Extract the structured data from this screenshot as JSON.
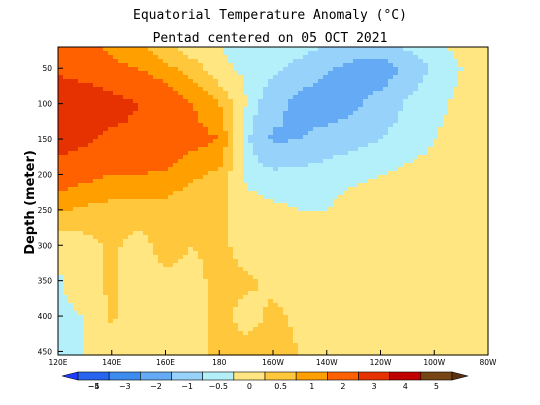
{
  "chart_data": {
    "type": "heatmap",
    "title": "Equatorial Temperature Anomaly (°C)",
    "subtitle": "Pentad centered on 05 OCT 2021",
    "ylabel": "Depth (meter)",
    "xlabel": "",
    "x_ticks": [
      "120E",
      "140E",
      "160E",
      "180",
      "160W",
      "140W",
      "120W",
      "100W",
      "80W"
    ],
    "x_tick_lon": [
      120,
      140,
      160,
      180,
      200,
      220,
      240,
      260,
      280
    ],
    "xlim": [
      120,
      280
    ],
    "y_ticks": [
      50,
      100,
      150,
      200,
      250,
      300,
      350,
      400,
      450
    ],
    "ylim": [
      20,
      455
    ],
    "colorbar": {
      "levels": [
        -5,
        -4,
        -3,
        -2,
        -1,
        -0.5,
        0,
        0.5,
        1,
        2,
        3,
        4,
        5
      ],
      "labels": [
        "−5",
        "−4",
        "−3",
        "−2",
        "−1",
        "−0.5",
        "0",
        "0.5",
        "1",
        "2",
        "3",
        "4",
        "5"
      ],
      "colors": [
        "#1e3cff",
        "#2864f0",
        "#3c8cf0",
        "#64aaf5",
        "#96d2fa",
        "#b4f0fa",
        "#ffe680",
        "#ffc83c",
        "#ffa000",
        "#ff6000",
        "#e63200",
        "#c00000",
        "#784614",
        "#5a3210"
      ]
    },
    "data": {
      "lon": [
        120,
        130,
        140,
        150,
        160,
        170,
        180,
        190,
        200,
        210,
        220,
        230,
        240,
        250,
        260,
        270,
        280
      ],
      "depth": [
        20,
        50,
        100,
        150,
        200,
        250,
        300,
        350,
        400,
        455
      ],
      "values": [
        [
          1.2,
          1.2,
          0.8,
          0.6,
          0.2,
          -0.4,
          -0.5,
          -0.6,
          -0.7,
          -0.8,
          -1.0,
          -1.2,
          -1.2,
          -0.9,
          -0.6,
          -0.4,
          -0.3
        ],
        [
          1.8,
          1.6,
          1.2,
          1.0,
          0.6,
          0.3,
          -0.4,
          -0.6,
          -0.8,
          -1.2,
          -1.8,
          -2.5,
          -2.8,
          -1.6,
          -0.8,
          -0.5,
          -0.4
        ],
        [
          2.8,
          2.6,
          2.4,
          2.0,
          1.5,
          1.0,
          0.5,
          -0.5,
          -1.5,
          -2.5,
          -2.8,
          -2.3,
          -1.5,
          -0.9,
          -0.6,
          -0.4,
          -0.3
        ],
        [
          2.6,
          2.2,
          1.8,
          1.8,
          1.6,
          1.2,
          1.0,
          -0.8,
          -2.2,
          -2.0,
          -1.5,
          -1.2,
          -1.0,
          -0.7,
          -0.5,
          -0.4,
          -0.3
        ],
        [
          1.4,
          1.2,
          1.0,
          1.0,
          0.9,
          0.6,
          0.4,
          -0.6,
          -0.8,
          -0.7,
          -0.6,
          -0.55,
          -0.5,
          -0.4,
          -0.4,
          -0.3,
          -0.3
        ],
        [
          0.6,
          0.4,
          0.3,
          0.3,
          0.3,
          0.1,
          0.2,
          -0.3,
          -0.4,
          -0.5,
          -0.5,
          -0.4,
          -0.4,
          -0.3,
          -0.3,
          -0.3,
          -0.3
        ],
        [
          -0.4,
          -0.2,
          0.1,
          -0.2,
          0.2,
          0.0,
          0.2,
          -0.3,
          -0.4,
          -0.4,
          -0.5,
          -0.4,
          -0.4,
          -0.3,
          -0.3,
          -0.3,
          -0.3
        ],
        [
          -0.55,
          -0.2,
          0.1,
          -0.3,
          -0.1,
          -0.2,
          0.2,
          0.1,
          -0.1,
          -0.3,
          -0.4,
          -0.4,
          -0.3,
          -0.3,
          -0.3,
          -0.3,
          -0.3
        ],
        [
          -0.6,
          -0.5,
          0.1,
          -0.4,
          -0.3,
          -0.3,
          0.2,
          -0.2,
          0.1,
          -0.1,
          -0.3,
          -0.4,
          -0.4,
          -0.3,
          -0.3,
          -0.3,
          -0.3
        ],
        [
          -0.6,
          -0.5,
          -0.3,
          -0.4,
          -0.3,
          -0.3,
          0.3,
          0.2,
          0.2,
          0.0,
          -0.3,
          -0.4,
          -0.4,
          -0.3,
          -0.3,
          -0.3,
          -0.3
        ]
      ]
    }
  }
}
